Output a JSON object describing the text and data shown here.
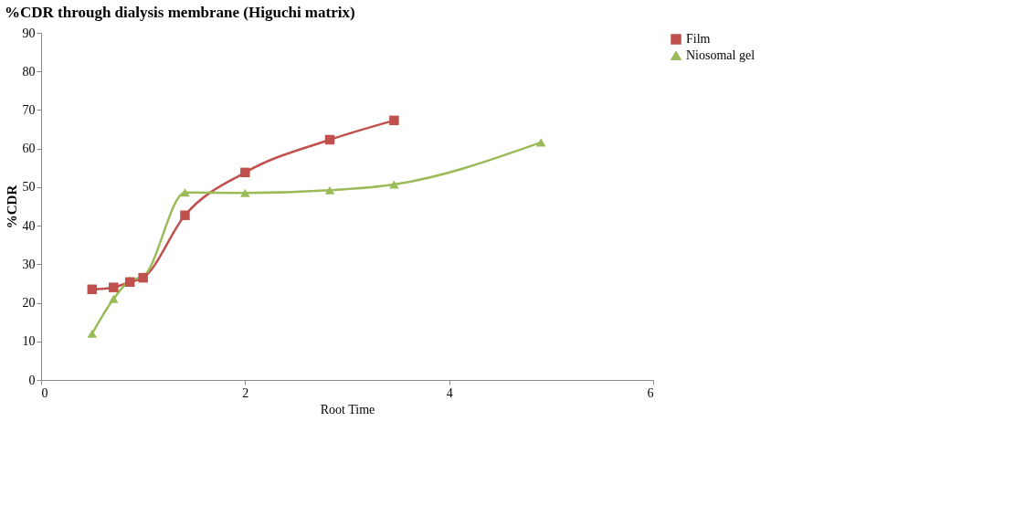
{
  "chart_data": {
    "type": "line",
    "title": "%CDR through dialysis membrane (Higuchi matrix)",
    "xlabel": "Root Time",
    "ylabel": "%CDR",
    "x": [
      0.5,
      0.71,
      0.87,
      1,
      1.41,
      2,
      2.83,
      3.46,
      4.9
    ],
    "series": [
      {
        "name": "Film",
        "color": "#c0504d",
        "marker": "square",
        "values": [
          23.5,
          24,
          25.4,
          26.5,
          42.7,
          53.8,
          62.3,
          67.3,
          null
        ]
      },
      {
        "name": "Niosomal gel",
        "color": "#9bbb59",
        "marker": "triangle",
        "values": [
          12,
          21,
          25.8,
          26.8,
          48.6,
          48.5,
          49.2,
          50.7,
          61.6
        ]
      }
    ],
    "xlim": [
      0,
      6
    ],
    "xticks": [
      0,
      2,
      4,
      6
    ],
    "ylim": [
      0,
      90
    ],
    "yticks": [
      0,
      10,
      20,
      30,
      40,
      50,
      60,
      70,
      80,
      90
    ],
    "grid": false,
    "legend": "right",
    "line_style": "solid"
  }
}
